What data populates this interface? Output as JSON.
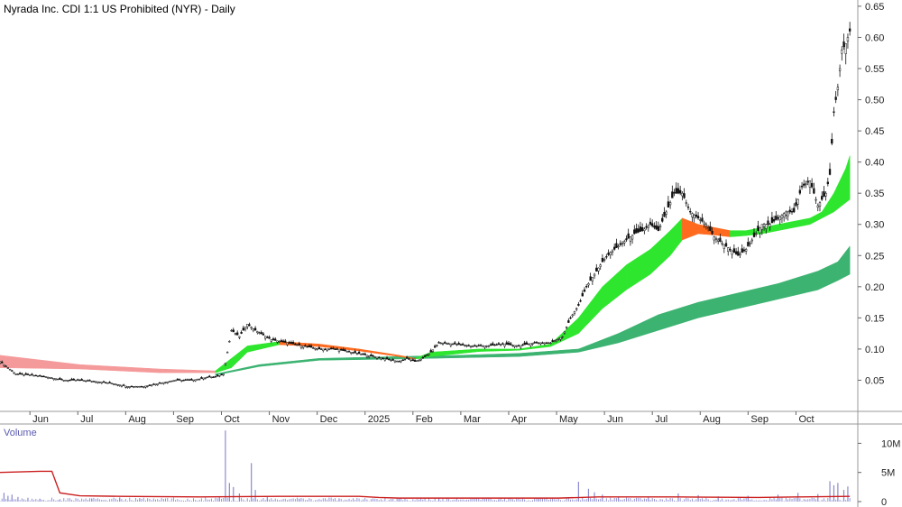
{
  "chart_data": {
    "type": "candlestick",
    "title": "Nyrada Inc. CDI 1:1 US Prohibited (NYR) - Daily",
    "price_axis": {
      "ticks": [
        "0.65",
        "0.60",
        "0.55",
        "0.50",
        "0.45",
        "0.40",
        "0.35",
        "0.30",
        "0.25",
        "0.20",
        "0.15",
        "0.10",
        "0.05"
      ],
      "ylim": [
        0.0,
        0.66
      ]
    },
    "x_axis": {
      "ticks": [
        "Jun",
        "Jul",
        "Aug",
        "Sep",
        "Oct",
        "Nov",
        "Dec",
        "2025",
        "Feb",
        "Mar",
        "Apr",
        "May",
        "Jun",
        "Jul",
        "Aug",
        "Sep",
        "Oct"
      ],
      "tick_positions": [
        15,
        39,
        63,
        87,
        111,
        135,
        159,
        183,
        207,
        231,
        255,
        279,
        303,
        327,
        351,
        375,
        399
      ]
    },
    "close_series": {
      "x": [
        0,
        8,
        16,
        24,
        32,
        40,
        48,
        56,
        64,
        72,
        80,
        88,
        96,
        100,
        104,
        108,
        112,
        116,
        120,
        124,
        128,
        136,
        144,
        152,
        160,
        168,
        176,
        184,
        192,
        200,
        204,
        208,
        212,
        216,
        220,
        228,
        236,
        244,
        252,
        260,
        268,
        276,
        282,
        286,
        290,
        294,
        298,
        302,
        306,
        310,
        314,
        318,
        322,
        326,
        330,
        334,
        338,
        342,
        346,
        350,
        354,
        358,
        362,
        366,
        370,
        374,
        378,
        382,
        386,
        390,
        394,
        398,
        402,
        406,
        410,
        414,
        416,
        418,
        420,
        422,
        424,
        426
      ],
      "y": [
        0.08,
        0.06,
        0.058,
        0.055,
        0.05,
        0.05,
        0.048,
        0.045,
        0.04,
        0.04,
        0.045,
        0.05,
        0.05,
        0.052,
        0.055,
        0.055,
        0.06,
        0.13,
        0.12,
        0.14,
        0.13,
        0.115,
        0.11,
        0.105,
        0.1,
        0.1,
        0.095,
        0.09,
        0.085,
        0.08,
        0.085,
        0.08,
        0.085,
        0.095,
        0.11,
        0.108,
        0.105,
        0.105,
        0.108,
        0.105,
        0.11,
        0.11,
        0.12,
        0.15,
        0.17,
        0.2,
        0.22,
        0.24,
        0.255,
        0.265,
        0.275,
        0.285,
        0.29,
        0.3,
        0.29,
        0.32,
        0.35,
        0.35,
        0.32,
        0.31,
        0.3,
        0.28,
        0.27,
        0.26,
        0.25,
        0.26,
        0.28,
        0.3,
        0.3,
        0.31,
        0.32,
        0.32,
        0.36,
        0.37,
        0.33,
        0.35,
        0.38,
        0.48,
        0.52,
        0.58,
        0.59,
        0.61
      ]
    },
    "fast_ma": {
      "x": [
        0,
        40,
        80,
        108,
        116,
        124,
        140,
        160,
        180,
        200,
        208,
        216,
        240,
        260,
        276,
        290,
        302,
        314,
        326,
        336,
        342,
        350,
        358,
        366,
        374,
        382,
        390,
        398,
        406,
        412,
        418,
        424,
        426
      ],
      "upper": [
        0.09,
        0.075,
        0.068,
        0.065,
        0.085,
        0.105,
        0.112,
        0.108,
        0.1,
        0.09,
        0.085,
        0.095,
        0.1,
        0.1,
        0.108,
        0.15,
        0.2,
        0.235,
        0.26,
        0.29,
        0.31,
        0.3,
        0.295,
        0.29,
        0.29,
        0.295,
        0.3,
        0.305,
        0.31,
        0.32,
        0.35,
        0.39,
        0.41
      ],
      "lower": [
        0.07,
        0.068,
        0.062,
        0.062,
        0.07,
        0.095,
        0.107,
        0.104,
        0.097,
        0.088,
        0.084,
        0.088,
        0.096,
        0.098,
        0.104,
        0.125,
        0.165,
        0.195,
        0.22,
        0.25,
        0.275,
        0.285,
        0.283,
        0.28,
        0.282,
        0.285,
        0.29,
        0.295,
        0.3,
        0.31,
        0.32,
        0.335,
        0.34
      ]
    },
    "slow_ma": {
      "x": [
        108,
        130,
        160,
        200,
        230,
        260,
        290,
        310,
        330,
        350,
        370,
        390,
        410,
        420,
        426
      ],
      "upper": [
        0.06,
        0.075,
        0.085,
        0.088,
        0.09,
        0.093,
        0.1,
        0.125,
        0.155,
        0.175,
        0.19,
        0.205,
        0.225,
        0.24,
        0.265
      ],
      "lower": [
        0.058,
        0.072,
        0.082,
        0.084,
        0.086,
        0.088,
        0.095,
        0.11,
        0.13,
        0.15,
        0.165,
        0.18,
        0.195,
        0.21,
        0.22
      ]
    },
    "volume": {
      "label": "Volume",
      "ticks": [
        "10M",
        "5M",
        "0"
      ],
      "ylim": [
        0,
        13
      ],
      "spikes": [
        {
          "x": 2,
          "v": 1.5
        },
        {
          "x": 4,
          "v": 1.0
        },
        {
          "x": 6,
          "v": 1.2
        },
        {
          "x": 9,
          "v": 0.8
        },
        {
          "x": 14,
          "v": 0.6
        },
        {
          "x": 20,
          "v": 0.5
        },
        {
          "x": 30,
          "v": 0.4
        },
        {
          "x": 46,
          "v": 0.5
        },
        {
          "x": 60,
          "v": 0.7
        },
        {
          "x": 70,
          "v": 0.6
        },
        {
          "x": 110,
          "v": 0.8
        },
        {
          "x": 113,
          "v": 12.2
        },
        {
          "x": 115,
          "v": 3.2
        },
        {
          "x": 117,
          "v": 2.5
        },
        {
          "x": 120,
          "v": 1.4
        },
        {
          "x": 126,
          "v": 6.6
        },
        {
          "x": 128,
          "v": 2.0
        },
        {
          "x": 134,
          "v": 0.9
        },
        {
          "x": 150,
          "v": 0.5
        },
        {
          "x": 170,
          "v": 0.4
        },
        {
          "x": 200,
          "v": 0.5
        },
        {
          "x": 220,
          "v": 0.6
        },
        {
          "x": 250,
          "v": 0.4
        },
        {
          "x": 270,
          "v": 0.6
        },
        {
          "x": 290,
          "v": 3.4
        },
        {
          "x": 295,
          "v": 2.2
        },
        {
          "x": 298,
          "v": 1.6
        },
        {
          "x": 302,
          "v": 1.2
        },
        {
          "x": 310,
          "v": 0.8
        },
        {
          "x": 325,
          "v": 0.7
        },
        {
          "x": 340,
          "v": 1.4
        },
        {
          "x": 350,
          "v": 1.1
        },
        {
          "x": 360,
          "v": 0.9
        },
        {
          "x": 375,
          "v": 1.0
        },
        {
          "x": 390,
          "v": 1.2
        },
        {
          "x": 400,
          "v": 1.5
        },
        {
          "x": 410,
          "v": 1.3
        },
        {
          "x": 416,
          "v": 3.5
        },
        {
          "x": 418,
          "v": 2.8
        },
        {
          "x": 420,
          "v": 3.2
        },
        {
          "x": 423,
          "v": 2.0
        },
        {
          "x": 425,
          "v": 2.6
        }
      ],
      "avg_line": {
        "x": [
          0,
          20,
          26,
          30,
          40,
          60,
          100,
          140,
          180,
          190,
          200,
          240,
          280,
          300,
          340,
          380,
          400,
          426
        ],
        "v": [
          5.0,
          5.2,
          5.2,
          1.5,
          1.0,
          0.9,
          0.8,
          0.9,
          0.9,
          0.7,
          0.6,
          0.6,
          0.6,
          0.8,
          0.8,
          0.7,
          0.8,
          0.9
        ]
      }
    },
    "colors": {
      "fast_ma_up": "#2ee62e",
      "fast_ma_down": "#ff6a1f",
      "fast_ma_early": "#f59a9a",
      "slow_ma": "#3cb371",
      "volume_bar": "#8a8ad0",
      "volume_avg": "#cc2020",
      "grid": "#dddddd"
    }
  }
}
